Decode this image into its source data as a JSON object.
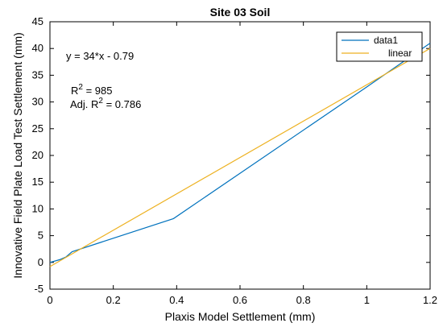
{
  "chart_data": {
    "type": "line",
    "title": "Site 03 Soil",
    "xlabel": "Plaxis Model Settlement (mm)",
    "ylabel": "Innovative Field Plate Load Test Settlement (mm)",
    "xlim": [
      0,
      1.2
    ],
    "ylim": [
      -5,
      45
    ],
    "x_ticks": [
      0,
      0.2,
      0.4,
      0.6,
      0.8,
      1,
      1.2
    ],
    "y_ticks": [
      -5,
      0,
      5,
      10,
      15,
      20,
      25,
      30,
      35,
      40,
      45
    ],
    "grid": false,
    "legend_position": "top-right",
    "series": [
      {
        "name": "data1",
        "color": "#0072BD",
        "x": [
          0,
          0.03,
          0.05,
          0.07,
          0.39,
          1.0,
          1.2
        ],
        "y": [
          0.0,
          0.5,
          1.0,
          2.0,
          8.2,
          32.8,
          41.0
        ]
      },
      {
        "name": "linear",
        "color": "#EDB120",
        "x": [
          0,
          1.2
        ],
        "y": [
          -0.79,
          40.01
        ]
      }
    ],
    "annotations": {
      "equation": "y = 34*x - 0.79",
      "r2_prefix": "R",
      "r2_sup": "2",
      "r2_value": " = 985",
      "adj_prefix": "Adj. R",
      "adj_sup": "2",
      "adj_value": " = 0.786"
    }
  }
}
